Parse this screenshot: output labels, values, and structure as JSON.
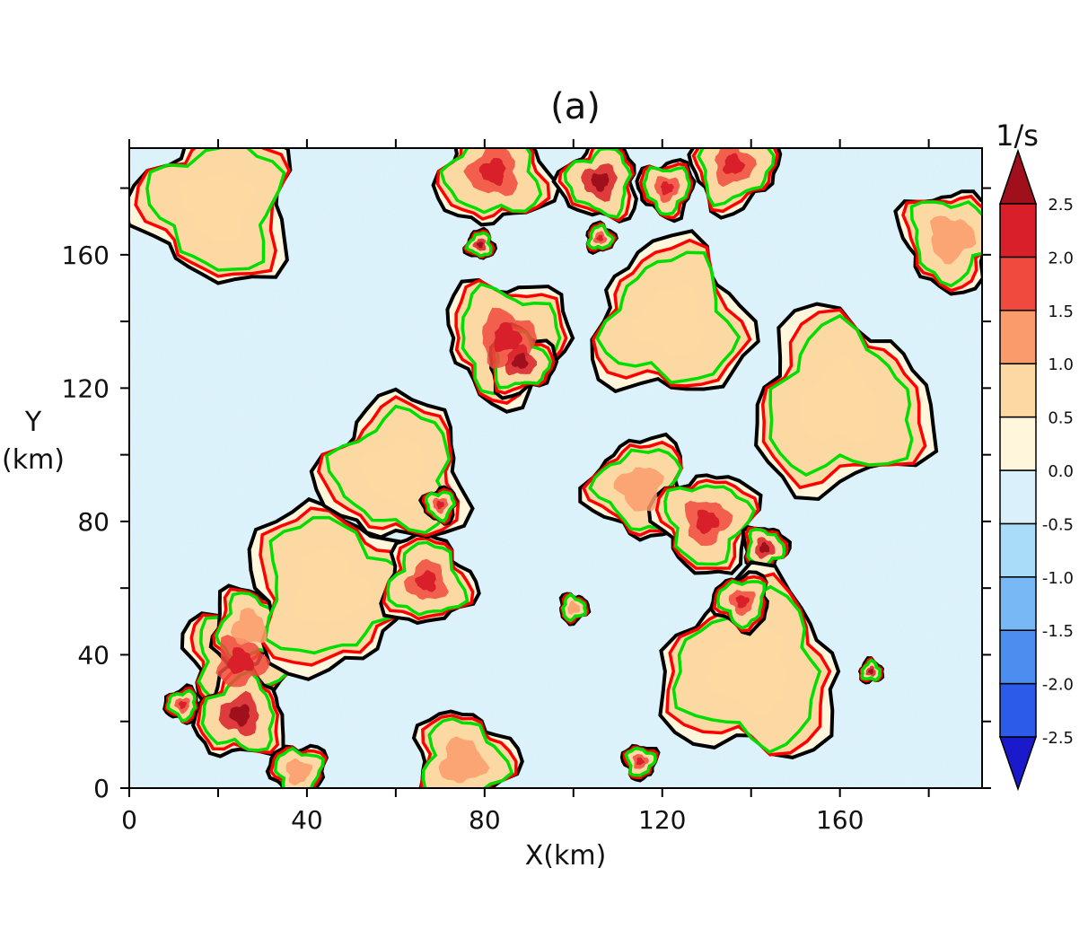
{
  "chart_data": {
    "type": "heatmap",
    "title": "(a)",
    "xlabel": "X(km)",
    "ylabel_line1": "Y",
    "ylabel_line2": "(km)",
    "xlim": [
      0,
      192
    ],
    "ylim": [
      0,
      192
    ],
    "xticks": [
      0,
      40,
      80,
      120,
      160
    ],
    "yticks": [
      0,
      40,
      80,
      120,
      160
    ],
    "grid": false,
    "colorbar": {
      "unit": "1/s",
      "levels": [
        -2.5,
        -2.0,
        -1.5,
        -1.0,
        -0.5,
        0.0,
        0.5,
        1.0,
        1.5,
        2.0,
        2.5
      ],
      "level_labels": [
        "-2.5",
        "-2.0",
        "-1.5",
        "-1.0",
        "-0.5",
        "0.0",
        "0.5",
        "1.0",
        "1.5",
        "2.0",
        "2.5"
      ],
      "colors": [
        "#1a1acc",
        "#2b5be8",
        "#4b8ef0",
        "#78b8f5",
        "#a8dcf8",
        "#daf1fb",
        "#fff6dc",
        "#fcd9a2",
        "#fa9b6c",
        "#f04a3e",
        "#d81f2a",
        "#a00f1c"
      ]
    },
    "contours": [
      {
        "color": "#000000",
        "label": "0"
      },
      {
        "color": "#ff0000"
      },
      {
        "color": "#00dd00"
      }
    ],
    "cells": [
      {
        "cx": 25,
        "cy": 38,
        "r": 10,
        "v": 1.6
      },
      {
        "cx": 27,
        "cy": 48,
        "r": 7,
        "v": 1.2
      },
      {
        "cx": 25,
        "cy": 22,
        "r": 8,
        "v": 2.1
      },
      {
        "cx": 12,
        "cy": 25,
        "r": 3,
        "v": 1.8
      },
      {
        "cx": 38,
        "cy": 5,
        "r": 5,
        "v": 1.5
      },
      {
        "cx": 45,
        "cy": 60,
        "r": 15,
        "v": 0.9
      },
      {
        "cx": 67,
        "cy": 62,
        "r": 8,
        "v": 1.6
      },
      {
        "cx": 60,
        "cy": 95,
        "r": 13,
        "v": 0.9
      },
      {
        "cx": 70,
        "cy": 85,
        "r": 3,
        "v": 2.0
      },
      {
        "cx": 85,
        "cy": 135,
        "r": 11,
        "v": 1.6
      },
      {
        "cx": 88,
        "cy": 128,
        "r": 6,
        "v": 2.2
      },
      {
        "cx": 122,
        "cy": 140,
        "r": 14,
        "v": 1.0
      },
      {
        "cx": 115,
        "cy": 90,
        "r": 9,
        "v": 1.5
      },
      {
        "cx": 130,
        "cy": 80,
        "r": 9,
        "v": 1.8
      },
      {
        "cx": 143,
        "cy": 72,
        "r": 4,
        "v": 2.3
      },
      {
        "cx": 160,
        "cy": 115,
        "r": 16,
        "v": 0.8
      },
      {
        "cx": 140,
        "cy": 35,
        "r": 16,
        "v": 0.7
      },
      {
        "cx": 138,
        "cy": 56,
        "r": 5,
        "v": 2.0
      },
      {
        "cx": 115,
        "cy": 8,
        "r": 3,
        "v": 2.0
      },
      {
        "cx": 75,
        "cy": 8,
        "r": 9,
        "v": 1.1
      },
      {
        "cx": 82,
        "cy": 185,
        "r": 10,
        "v": 1.9
      },
      {
        "cx": 106,
        "cy": 182,
        "r": 7,
        "v": 2.2
      },
      {
        "cx": 121,
        "cy": 180,
        "r": 5,
        "v": 2.0
      },
      {
        "cx": 136,
        "cy": 187,
        "r": 8,
        "v": 2.0
      },
      {
        "cx": 106,
        "cy": 165,
        "r": 2.5,
        "v": 1.8
      },
      {
        "cx": 79,
        "cy": 163,
        "r": 2.5,
        "v": 2.3
      },
      {
        "cx": 20,
        "cy": 175,
        "r": 14,
        "v": 0.8
      },
      {
        "cx": 185,
        "cy": 165,
        "r": 9,
        "v": 1.2
      },
      {
        "cx": 100,
        "cy": 54,
        "r": 2.5,
        "v": 1.5
      },
      {
        "cx": 167,
        "cy": 35,
        "r": 2,
        "v": 2.2
      }
    ]
  }
}
